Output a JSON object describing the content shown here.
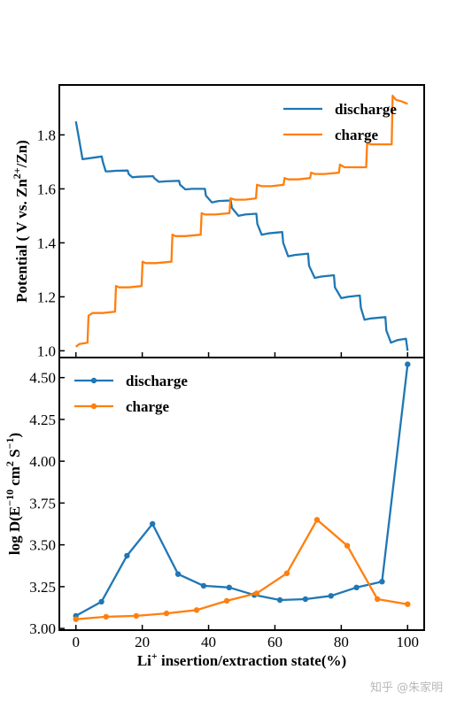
{
  "watermark": "知乎 @朱家明",
  "colors": {
    "discharge": "#1f77b4",
    "charge": "#ff7f0e",
    "axis": "#000000"
  },
  "chart_data": [
    {
      "type": "line",
      "ylabel": "Potential ( V vs. Zn²⁺/Zn)",
      "ylabel_parts": {
        "main": "Potential ( V vs. Zn",
        "sup1": "2+",
        "tail": "/Zn)"
      },
      "ylim": [
        0.975,
        1.985
      ],
      "xlim": [
        -5,
        105
      ],
      "yticks": [
        1.0,
        1.2,
        1.4,
        1.6,
        1.8
      ],
      "ytick_labels": [
        "1.0",
        "1.2",
        "1.4",
        "1.6",
        "1.8"
      ],
      "legend_placement": "top-right",
      "grid": false,
      "series": [
        {
          "name": "discharge",
          "x": [
            0.0,
            1.0,
            2.0,
            5.0,
            7.8,
            8.1,
            9.0,
            10.0,
            12.0,
            15.6,
            15.9,
            17.0,
            19.0,
            23.3,
            23.6,
            25.0,
            27.0,
            31.1,
            31.4,
            33.0,
            35.0,
            38.9,
            39.2,
            41.0,
            43.0,
            46.7,
            47.0,
            49.0,
            51.0,
            54.4,
            54.7,
            56.0,
            58.0,
            62.2,
            62.5,
            64.0,
            66.0,
            70.0,
            70.3,
            72.0,
            74.0,
            77.8,
            78.1,
            80.0,
            82.0,
            85.6,
            85.9,
            87.0,
            89.0,
            93.3,
            93.6,
            95.0,
            97.0,
            99.5,
            100.0
          ],
          "y": [
            1.85,
            1.78,
            1.71,
            1.715,
            1.72,
            1.7,
            1.665,
            1.665,
            1.667,
            1.668,
            1.655,
            1.643,
            1.645,
            1.647,
            1.64,
            1.626,
            1.628,
            1.63,
            1.615,
            1.598,
            1.6,
            1.6,
            1.575,
            1.55,
            1.555,
            1.557,
            1.53,
            1.5,
            1.505,
            1.508,
            1.47,
            1.43,
            1.435,
            1.44,
            1.4,
            1.35,
            1.355,
            1.36,
            1.315,
            1.27,
            1.275,
            1.28,
            1.235,
            1.195,
            1.2,
            1.205,
            1.16,
            1.115,
            1.12,
            1.125,
            1.075,
            1.03,
            1.04,
            1.045,
            1.0
          ]
        },
        {
          "name": "charge",
          "x": [
            0.0,
            1.0,
            3.5,
            3.8,
            5.0,
            8.0,
            11.8,
            12.1,
            13.0,
            16.0,
            19.8,
            20.1,
            21.0,
            24.0,
            28.8,
            29.1,
            30.0,
            33.0,
            37.6,
            37.9,
            39.0,
            42.0,
            46.3,
            46.6,
            48.0,
            51.0,
            54.3,
            54.6,
            56.0,
            59.0,
            62.6,
            62.9,
            64.0,
            67.0,
            70.6,
            70.9,
            72.0,
            75.0,
            79.3,
            79.6,
            81.0,
            84.0,
            87.5,
            87.8,
            89.0,
            92.0,
            95.2,
            95.5,
            96.5,
            98.0,
            100.0
          ],
          "y": [
            1.015,
            1.025,
            1.03,
            1.13,
            1.14,
            1.14,
            1.145,
            1.24,
            1.235,
            1.235,
            1.24,
            1.33,
            1.325,
            1.325,
            1.33,
            1.43,
            1.425,
            1.425,
            1.43,
            1.51,
            1.505,
            1.505,
            1.51,
            1.565,
            1.56,
            1.56,
            1.565,
            1.615,
            1.61,
            1.61,
            1.615,
            1.64,
            1.635,
            1.635,
            1.64,
            1.66,
            1.655,
            1.655,
            1.66,
            1.69,
            1.68,
            1.68,
            1.68,
            1.77,
            1.765,
            1.765,
            1.765,
            1.945,
            1.93,
            1.925,
            1.915
          ]
        }
      ]
    },
    {
      "type": "line",
      "xlabel": "Li⁺ insertion/extraction state(%)",
      "xlabel_parts": {
        "main": "Li",
        "sup": "+",
        "tail": " insertion/extraction state(%)"
      },
      "ylabel": "log D(E⁻¹⁰ cm² S⁻¹)",
      "ylabel_parts": {
        "a": "log D(E",
        "b": "−10",
        "c": " cm",
        "d": "2",
        "e": " S",
        "f": "−1",
        "g": ")"
      },
      "ylim": [
        2.99,
        4.62
      ],
      "xlim": [
        -5,
        105
      ],
      "xticks": [
        0,
        20,
        40,
        60,
        80,
        100
      ],
      "xtick_labels": [
        "0",
        "20",
        "40",
        "60",
        "80",
        "100"
      ],
      "yticks": [
        3.0,
        3.25,
        3.5,
        3.75,
        4.0,
        4.25,
        4.5
      ],
      "ytick_labels": [
        "3.00",
        "3.25",
        "3.50",
        "3.75",
        "4.00",
        "4.25",
        "4.50"
      ],
      "legend_placement": "top-left",
      "grid": false,
      "series": [
        {
          "name": "discharge",
          "x": [
            0,
            7.7,
            15.4,
            23.1,
            30.8,
            38.5,
            46.2,
            53.8,
            61.5,
            69.2,
            76.9,
            84.6,
            92.3,
            100
          ],
          "y": [
            3.075,
            3.16,
            3.435,
            3.625,
            3.325,
            3.255,
            3.245,
            3.2,
            3.17,
            3.175,
            3.195,
            3.245,
            3.28,
            4.58
          ]
        },
        {
          "name": "charge",
          "x": [
            0,
            9.1,
            18.2,
            27.3,
            36.4,
            45.5,
            54.5,
            63.6,
            72.7,
            81.8,
            90.9,
            100
          ],
          "y": [
            3.055,
            3.07,
            3.075,
            3.09,
            3.11,
            3.165,
            3.21,
            3.33,
            3.65,
            3.495,
            3.175,
            3.145
          ]
        }
      ]
    }
  ]
}
